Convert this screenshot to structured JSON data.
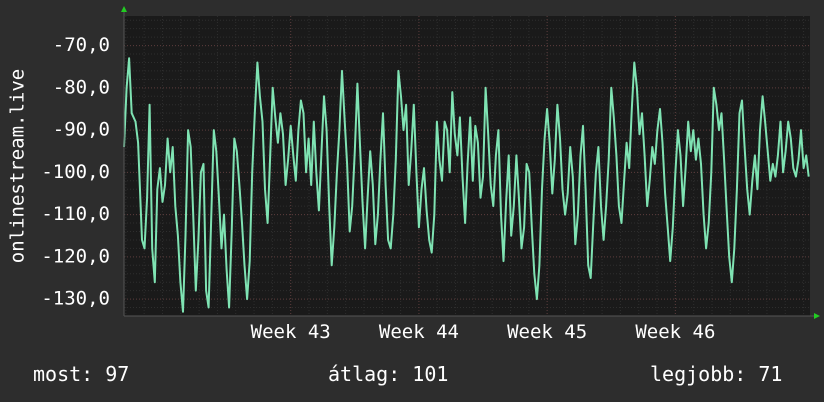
{
  "chart_data": {
    "type": "line",
    "ylabel": "onlinestream.live",
    "y_ticks": [
      "-70,0",
      "-80,0",
      "-90,0",
      "-100,0",
      "-110,0",
      "-120,0",
      "-130,0"
    ],
    "y_tick_values": [
      -70,
      -80,
      -90,
      -100,
      -110,
      -120,
      -130
    ],
    "ylim": [
      -134,
      -63
    ],
    "x_ticks": [
      "Week 43",
      "Week 44",
      "Week 45",
      "Week 46"
    ],
    "x_tick_values": [
      43,
      44,
      45,
      46
    ],
    "xlim": [
      41.7,
      47.05
    ],
    "grid": true,
    "colors": {
      "background": "#2d2d2d",
      "plot": "#1a1a1a",
      "line": "#7fe3b3",
      "grid": "#3a3a3a",
      "axis_arrow": "#22cc22"
    },
    "series": [
      {
        "values": [
          [
            41.7,
            -94
          ],
          [
            41.72,
            -80
          ],
          [
            41.74,
            -73
          ],
          [
            41.76,
            -86
          ],
          [
            41.79,
            -88
          ],
          [
            41.81,
            -93
          ],
          [
            41.84,
            -116
          ],
          [
            41.86,
            -118
          ],
          [
            41.88,
            -106
          ],
          [
            41.9,
            -84
          ],
          [
            41.92,
            -118
          ],
          [
            41.94,
            -126
          ],
          [
            41.96,
            -104
          ],
          [
            41.98,
            -99
          ],
          [
            42.0,
            -107
          ],
          [
            42.02,
            -103
          ],
          [
            42.04,
            -92
          ],
          [
            42.06,
            -100
          ],
          [
            42.08,
            -94
          ],
          [
            42.1,
            -108
          ],
          [
            42.12,
            -115
          ],
          [
            42.14,
            -126
          ],
          [
            42.16,
            -133
          ],
          [
            42.18,
            -115
          ],
          [
            42.2,
            -90
          ],
          [
            42.22,
            -94
          ],
          [
            42.24,
            -110
          ],
          [
            42.26,
            -128
          ],
          [
            42.28,
            -116
          ],
          [
            42.3,
            -100
          ],
          [
            42.32,
            -98
          ],
          [
            42.34,
            -128
          ],
          [
            42.36,
            -132
          ],
          [
            42.38,
            -111
          ],
          [
            42.4,
            -90
          ],
          [
            42.42,
            -95
          ],
          [
            42.44,
            -106
          ],
          [
            42.46,
            -118
          ],
          [
            42.48,
            -110
          ],
          [
            42.5,
            -123
          ],
          [
            42.52,
            -132
          ],
          [
            42.54,
            -114
          ],
          [
            42.56,
            -92
          ],
          [
            42.58,
            -95
          ],
          [
            42.6,
            -103
          ],
          [
            42.62,
            -112
          ],
          [
            42.64,
            -122
          ],
          [
            42.66,
            -130
          ],
          [
            42.68,
            -121
          ],
          [
            42.7,
            -100
          ],
          [
            42.72,
            -86
          ],
          [
            42.74,
            -74
          ],
          [
            42.76,
            -82
          ],
          [
            42.78,
            -88
          ],
          [
            42.8,
            -104
          ],
          [
            42.82,
            -112
          ],
          [
            42.84,
            -96
          ],
          [
            42.86,
            -80
          ],
          [
            42.88,
            -87
          ],
          [
            42.9,
            -93
          ],
          [
            42.92,
            -86
          ],
          [
            42.94,
            -91
          ],
          [
            42.96,
            -103
          ],
          [
            42.98,
            -97
          ],
          [
            43.0,
            -89
          ],
          [
            43.02,
            -96
          ],
          [
            43.04,
            -102
          ],
          [
            43.06,
            -90
          ],
          [
            43.08,
            -83
          ],
          [
            43.1,
            -86
          ],
          [
            43.12,
            -100
          ],
          [
            43.14,
            -92
          ],
          [
            43.16,
            -103
          ],
          [
            43.18,
            -88
          ],
          [
            43.2,
            -100
          ],
          [
            43.22,
            -109
          ],
          [
            43.24,
            -95
          ],
          [
            43.26,
            -82
          ],
          [
            43.28,
            -90
          ],
          [
            43.3,
            -108
          ],
          [
            43.32,
            -122
          ],
          [
            43.34,
            -113
          ],
          [
            43.36,
            -100
          ],
          [
            43.38,
            -90
          ],
          [
            43.4,
            -76
          ],
          [
            43.42,
            -87
          ],
          [
            43.44,
            -98
          ],
          [
            43.46,
            -114
          ],
          [
            43.48,
            -108
          ],
          [
            43.5,
            -95
          ],
          [
            43.52,
            -79
          ],
          [
            43.54,
            -93
          ],
          [
            43.56,
            -107
          ],
          [
            43.58,
            -118
          ],
          [
            43.6,
            -106
          ],
          [
            43.62,
            -95
          ],
          [
            43.64,
            -103
          ],
          [
            43.66,
            -117
          ],
          [
            43.68,
            -110
          ],
          [
            43.7,
            -97
          ],
          [
            43.72,
            -86
          ],
          [
            43.74,
            -103
          ],
          [
            43.76,
            -116
          ],
          [
            43.78,
            -118
          ],
          [
            43.8,
            -110
          ],
          [
            43.82,
            -97
          ],
          [
            43.84,
            -76
          ],
          [
            43.86,
            -82
          ],
          [
            43.88,
            -90
          ],
          [
            43.9,
            -84
          ],
          [
            43.92,
            -103
          ],
          [
            43.94,
            -95
          ],
          [
            43.96,
            -84
          ],
          [
            43.98,
            -100
          ],
          [
            44.0,
            -113
          ],
          [
            44.02,
            -104
          ],
          [
            44.04,
            -99
          ],
          [
            44.06,
            -109
          ],
          [
            44.08,
            -116
          ],
          [
            44.1,
            -119
          ],
          [
            44.12,
            -110
          ],
          [
            44.14,
            -88
          ],
          [
            44.16,
            -97
          ],
          [
            44.18,
            -102
          ],
          [
            44.2,
            -88
          ],
          [
            44.22,
            -90
          ],
          [
            44.24,
            -100
          ],
          [
            44.26,
            -81
          ],
          [
            44.28,
            -91
          ],
          [
            44.3,
            -96
          ],
          [
            44.32,
            -87
          ],
          [
            44.34,
            -101
          ],
          [
            44.36,
            -112
          ],
          [
            44.38,
            -98
          ],
          [
            44.4,
            -87
          ],
          [
            44.42,
            -102
          ],
          [
            44.44,
            -89
          ],
          [
            44.46,
            -93
          ],
          [
            44.48,
            -106
          ],
          [
            44.5,
            -101
          ],
          [
            44.52,
            -80
          ],
          [
            44.54,
            -91
          ],
          [
            44.56,
            -103
          ],
          [
            44.58,
            -108
          ],
          [
            44.6,
            -96
          ],
          [
            44.62,
            -90
          ],
          [
            44.64,
            -110
          ],
          [
            44.66,
            -121
          ],
          [
            44.68,
            -107
          ],
          [
            44.7,
            -96
          ],
          [
            44.72,
            -115
          ],
          [
            44.74,
            -108
          ],
          [
            44.76,
            -96
          ],
          [
            44.78,
            -106
          ],
          [
            44.8,
            -118
          ],
          [
            44.82,
            -113
          ],
          [
            44.84,
            -98
          ],
          [
            44.86,
            -100
          ],
          [
            44.88,
            -113
          ],
          [
            44.9,
            -124
          ],
          [
            44.92,
            -130
          ],
          [
            44.94,
            -122
          ],
          [
            44.96,
            -104
          ],
          [
            44.98,
            -92
          ],
          [
            45.0,
            -85
          ],
          [
            45.02,
            -93
          ],
          [
            45.04,
            -105
          ],
          [
            45.06,
            -97
          ],
          [
            45.08,
            -84
          ],
          [
            45.1,
            -92
          ],
          [
            45.12,
            -104
          ],
          [
            45.14,
            -110
          ],
          [
            45.16,
            -105
          ],
          [
            45.18,
            -94
          ],
          [
            45.2,
            -101
          ],
          [
            45.22,
            -117
          ],
          [
            45.24,
            -110
          ],
          [
            45.26,
            -96
          ],
          [
            45.28,
            -89
          ],
          [
            45.3,
            -104
          ],
          [
            45.32,
            -122
          ],
          [
            45.34,
            -125
          ],
          [
            45.36,
            -112
          ],
          [
            45.38,
            -100
          ],
          [
            45.4,
            -94
          ],
          [
            45.42,
            -108
          ],
          [
            45.44,
            -116
          ],
          [
            45.46,
            -108
          ],
          [
            45.48,
            -97
          ],
          [
            45.5,
            -80
          ],
          [
            45.52,
            -87
          ],
          [
            45.54,
            -96
          ],
          [
            45.56,
            -108
          ],
          [
            45.58,
            -112
          ],
          [
            45.6,
            -102
          ],
          [
            45.62,
            -93
          ],
          [
            45.64,
            -99
          ],
          [
            45.66,
            -85
          ],
          [
            45.68,
            -74
          ],
          [
            45.7,
            -80
          ],
          [
            45.72,
            -91
          ],
          [
            45.74,
            -86
          ],
          [
            45.76,
            -96
          ],
          [
            45.78,
            -108
          ],
          [
            45.8,
            -102
          ],
          [
            45.82,
            -94
          ],
          [
            45.84,
            -98
          ],
          [
            45.86,
            -90
          ],
          [
            45.88,
            -85
          ],
          [
            45.9,
            -93
          ],
          [
            45.92,
            -105
          ],
          [
            45.94,
            -113
          ],
          [
            45.96,
            -121
          ],
          [
            45.98,
            -113
          ],
          [
            46.0,
            -100
          ],
          [
            46.02,
            -90
          ],
          [
            46.04,
            -96
          ],
          [
            46.06,
            -108
          ],
          [
            46.08,
            -99
          ],
          [
            46.1,
            -88
          ],
          [
            46.12,
            -95
          ],
          [
            46.14,
            -90
          ],
          [
            46.16,
            -97
          ],
          [
            46.18,
            -92
          ],
          [
            46.2,
            -98
          ],
          [
            46.22,
            -110
          ],
          [
            46.24,
            -118
          ],
          [
            46.26,
            -112
          ],
          [
            46.28,
            -100
          ],
          [
            46.3,
            -80
          ],
          [
            46.32,
            -84
          ],
          [
            46.34,
            -90
          ],
          [
            46.36,
            -86
          ],
          [
            46.38,
            -97
          ],
          [
            46.4,
            -109
          ],
          [
            46.42,
            -120
          ],
          [
            46.44,
            -126
          ],
          [
            46.46,
            -118
          ],
          [
            46.48,
            -104
          ],
          [
            46.5,
            -86
          ],
          [
            46.52,
            -83
          ],
          [
            46.54,
            -94
          ],
          [
            46.56,
            -104
          ],
          [
            46.58,
            -110
          ],
          [
            46.6,
            -102
          ],
          [
            46.62,
            -96
          ],
          [
            46.64,
            -104
          ],
          [
            46.66,
            -90
          ],
          [
            46.68,
            -82
          ],
          [
            46.7,
            -88
          ],
          [
            46.72,
            -95
          ],
          [
            46.74,
            -102
          ],
          [
            46.76,
            -98
          ],
          [
            46.78,
            -101
          ],
          [
            46.8,
            -96
          ],
          [
            46.82,
            -88
          ],
          [
            46.84,
            -100
          ],
          [
            46.86,
            -95
          ],
          [
            46.88,
            -88
          ],
          [
            46.9,
            -92
          ],
          [
            46.92,
            -99
          ],
          [
            46.94,
            -101
          ],
          [
            46.96,
            -97
          ],
          [
            46.98,
            -90
          ],
          [
            47.0,
            -99
          ],
          [
            47.02,
            -96
          ],
          [
            47.04,
            -101
          ]
        ]
      }
    ]
  },
  "stats": {
    "current": "most: 97",
    "average": "átlag: 101",
    "best": "legjobb: 71"
  }
}
